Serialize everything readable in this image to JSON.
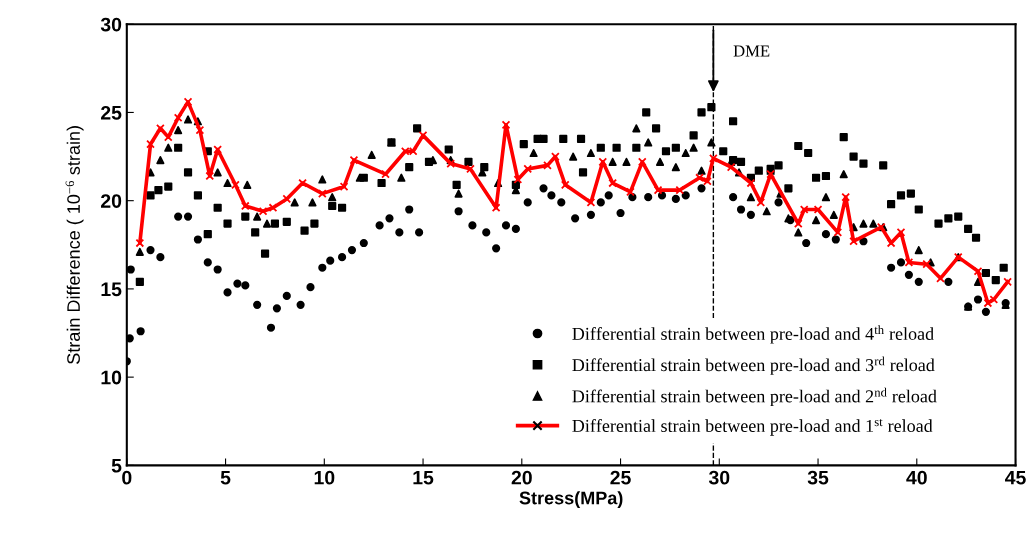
{
  "chart_data": {
    "type": "scatter",
    "xlabel": "Stress(MPa)",
    "ylabel": "Strain Difference ( 10$^{−6}$ strain)",
    "xlim": [
      0,
      45
    ],
    "ylim": [
      5,
      30
    ],
    "xticks": [
      0,
      5,
      10,
      15,
      20,
      25,
      30,
      35,
      40,
      45
    ],
    "yticks": [
      5,
      10,
      15,
      20,
      25,
      30
    ],
    "grid": false,
    "legend": "bottom right",
    "ref_lines": [
      {
        "axis": "x",
        "value": 29.7,
        "label": "DME",
        "line_style": "dashed",
        "color": "#000000"
      }
    ],
    "series": [
      {
        "name": "Differential strain between pre-load and 4$^{th}$ reload",
        "marker": "circle",
        "color": "#000000",
        "x": [
          0,
          0.15,
          0.7,
          0.2,
          1.2,
          1.7,
          2.6,
          3.1,
          3.6,
          4.1,
          4.6,
          5.1,
          5.6,
          6.0,
          6.6,
          7.3,
          7.6,
          8.1,
          8.8,
          9.3,
          9.9,
          10.3,
          10.9,
          11.4,
          12.0,
          12.8,
          13.3,
          13.8,
          14.3,
          14.8,
          16.8,
          17.5,
          18.2,
          18.7,
          19.2,
          19.7,
          20.3,
          21.1,
          21.5,
          22.0,
          22.7,
          23.5,
          24.0,
          24.4,
          25.0,
          25.6,
          26.4,
          27.1,
          27.8,
          28.3,
          29.1,
          30.7,
          31.1,
          31.6,
          33.0,
          33.6,
          34.4,
          35.4,
          35.9,
          37.3,
          38.7,
          39.2,
          39.6,
          40.1,
          41.6,
          42.6,
          43.1,
          43.5,
          44.5
        ],
        "values": [
          10.9,
          12.2,
          12.6,
          16.1,
          17.2,
          16.8,
          19.1,
          19.1,
          17.8,
          16.5,
          16.1,
          14.8,
          15.3,
          15.2,
          14.1,
          12.8,
          13.9,
          14.6,
          14.1,
          15.1,
          16.2,
          16.6,
          16.8,
          17.2,
          17.6,
          18.6,
          19.0,
          18.2,
          19.5,
          18.2,
          19.4,
          18.6,
          18.2,
          17.3,
          18.6,
          18.4,
          19.9,
          20.7,
          20.3,
          19.9,
          19.0,
          19.2,
          19.9,
          20.3,
          19.3,
          20.2,
          20.2,
          20.3,
          20.1,
          20.3,
          20.7,
          20.2,
          19.5,
          19.2,
          19.9,
          18.9,
          17.6,
          18.1,
          17.8,
          17.7,
          16.2,
          16.5,
          15.8,
          15.4,
          15.4,
          14.0,
          14.4,
          13.7,
          14.2
        ]
      },
      {
        "name": "Differential strain between pre-load and 3$^{rd}$ reload",
        "marker": "square",
        "color": "#000000",
        "x": [
          0.66,
          1.2,
          1.6,
          2.1,
          2.6,
          3.1,
          3.6,
          4.1,
          4.6,
          5.1,
          4.1,
          6.0,
          6.5,
          7.0,
          7.5,
          8.1,
          9.0,
          9.5,
          10.4,
          10.9,
          12.0,
          12.9,
          13.4,
          14.3,
          14.7,
          15.3,
          16.3,
          17.3,
          16.7,
          18.1,
          19.7,
          20.1,
          20.8,
          21.1,
          22.1,
          23.0,
          23.1,
          24.0,
          24.8,
          26.3,
          26.8,
          25.8,
          27.3,
          27.8,
          28.7,
          29.1,
          29.6,
          30.2,
          30.7,
          30.7,
          31.1,
          31.6,
          32.0,
          32.6,
          33.0,
          33.5,
          34.0,
          34.5,
          34.9,
          35.4,
          36.3,
          36.8,
          37.3,
          38.3,
          38.7,
          39.2,
          39.7,
          40.1,
          41.1,
          41.6,
          42.1,
          42.6,
          43.0,
          43.5,
          44.0,
          44.4
        ],
        "values": [
          15.4,
          20.3,
          20.6,
          20.8,
          23.0,
          21.6,
          20.3,
          22.8,
          19.6,
          18.7,
          18.1,
          19.1,
          18.2,
          17.0,
          18.7,
          18.8,
          18.3,
          18.7,
          19.7,
          19.6,
          21.3,
          21.0,
          23.3,
          21.9,
          24.1,
          22.2,
          22.9,
          22.2,
          20.9,
          21.9,
          20.9,
          23.2,
          23.5,
          23.5,
          23.5,
          23.5,
          21.6,
          23.0,
          23.0,
          25.0,
          24.1,
          23.0,
          22.8,
          23.0,
          23.7,
          25.0,
          25.3,
          22.8,
          24.5,
          22.3,
          22.2,
          21.3,
          21.7,
          21.8,
          22.0,
          20.7,
          23.1,
          22.7,
          21.3,
          21.4,
          23.6,
          22.5,
          22.1,
          22.0,
          19.8,
          20.3,
          20.4,
          19.5,
          18.7,
          19.0,
          19.1,
          18.4,
          17.9,
          15.9,
          15.5,
          16.2
        ]
      },
      {
        "name": "Differential strain between pre-load and 2$^{nd}$ reload",
        "marker": "triangle",
        "color": "#000000",
        "x": [
          0.66,
          1.2,
          1.7,
          2.1,
          2.6,
          3.1,
          3.6,
          4.6,
          5.1,
          6.1,
          6.6,
          7.1,
          8.5,
          9.4,
          9.9,
          10.4,
          11.8,
          12.4,
          13.4,
          13.9,
          15.5,
          16.4,
          16.8,
          18.0,
          18.8,
          19.7,
          20.6,
          22.6,
          23.5,
          24.6,
          25.3,
          25.8,
          26.4,
          27.0,
          27.8,
          28.3,
          28.7,
          29.1,
          29.6,
          30.6,
          31.0,
          31.6,
          32.4,
          32.6,
          33.1,
          33.5,
          34.0,
          34.9,
          35.4,
          35.8,
          36.3,
          36.8,
          37.3,
          37.8,
          38.3,
          40.1,
          40.7,
          42.1,
          42.6,
          43.1,
          44.5
        ],
        "values": [
          17.1,
          21.6,
          22.3,
          23.0,
          24.0,
          24.6,
          24.5,
          21.6,
          21.0,
          20.9,
          19.1,
          18.7,
          19.9,
          19.9,
          21.2,
          20.2,
          21.3,
          22.6,
          23.3,
          21.3,
          22.3,
          22.3,
          20.4,
          21.6,
          21.0,
          20.6,
          22.7,
          22.5,
          22.7,
          22.2,
          22.2,
          24.1,
          23.3,
          22.2,
          21.9,
          22.7,
          23.0,
          21.7,
          23.3,
          22.2,
          21.6,
          20.2,
          19.4,
          21.7,
          20.4,
          19.0,
          18.2,
          18.9,
          20.2,
          19.2,
          21.5,
          18.5,
          18.7,
          18.7,
          18.5,
          17.2,
          16.5,
          16.8,
          14.0,
          15.4,
          14.1
        ]
      },
      {
        "name": "Differential strain between pre-load and 1$^{st}$ reload",
        "type": "line",
        "marker": "cross",
        "line_style": "solid",
        "color": "#ff0000",
        "x": [
          0.66,
          1.2,
          1.7,
          2.1,
          2.6,
          3.1,
          3.7,
          4.2,
          4.6,
          5.5,
          6.0,
          6.9,
          7.4,
          8.1,
          8.9,
          9.9,
          11.0,
          11.5,
          13.1,
          14.1,
          14.5,
          15.0,
          16.4,
          17.4,
          18.7,
          19.2,
          19.8,
          20.3,
          21.3,
          21.7,
          22.2,
          23.5,
          24.1,
          24.6,
          25.5,
          26.1,
          26.9,
          28.0,
          29.0,
          29.4,
          29.7,
          30.6,
          31.6,
          32.1,
          32.6,
          34.0,
          34.3,
          35.0,
          36.0,
          36.4,
          36.8,
          38.2,
          38.7,
          39.2,
          39.6,
          40.5,
          41.2,
          42.1,
          43.1,
          43.6,
          43.9,
          44.6
        ],
        "values": [
          17.6,
          23.2,
          24.1,
          23.6,
          24.7,
          25.6,
          24.0,
          21.4,
          22.9,
          20.9,
          19.7,
          19.4,
          19.6,
          20.1,
          21.0,
          20.4,
          20.8,
          22.3,
          21.5,
          22.8,
          22.8,
          23.7,
          22.1,
          21.8,
          19.6,
          24.3,
          21.2,
          21.8,
          22.0,
          22.5,
          20.9,
          19.9,
          22.2,
          21.0,
          20.5,
          22.2,
          20.6,
          20.6,
          21.3,
          21.1,
          22.4,
          21.9,
          21.0,
          19.9,
          21.5,
          18.7,
          19.5,
          19.5,
          18.2,
          20.2,
          17.7,
          18.5,
          17.6,
          18.2,
          16.5,
          16.4,
          15.6,
          16.8,
          16.0,
          14.2,
          14.4,
          15.4
        ]
      }
    ]
  }
}
